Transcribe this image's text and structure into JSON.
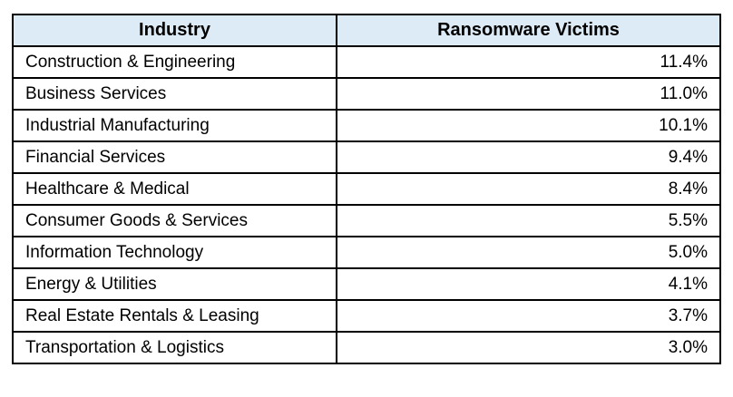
{
  "table": {
    "columns": [
      {
        "label": "Industry"
      },
      {
        "label": "Ransomware Victims"
      }
    ],
    "rows": [
      {
        "industry": "Construction & Engineering",
        "victims": "11.4%"
      },
      {
        "industry": "Business Services",
        "victims": "11.0%"
      },
      {
        "industry": "Industrial Manufacturing",
        "victims": "10.1%"
      },
      {
        "industry": "Financial Services",
        "victims": "9.4%"
      },
      {
        "industry": "Healthcare & Medical",
        "victims": "8.4%"
      },
      {
        "industry": "Consumer Goods & Services",
        "victims": "5.5%"
      },
      {
        "industry": "Information Technology",
        "victims": "5.0%"
      },
      {
        "industry": "Energy & Utilities",
        "victims": "4.1%"
      },
      {
        "industry": "Real Estate Rentals & Leasing",
        "victims": "3.7%"
      },
      {
        "industry": "Transportation & Logistics",
        "victims": "3.0%"
      }
    ],
    "colors": {
      "header_bg": "#DDEBF7",
      "border": "#000000",
      "text": "#000000",
      "page_bg": "#FFFFFF"
    }
  },
  "chart_data": {
    "type": "table",
    "title": "",
    "columns": [
      "Industry",
      "Ransomware Victims"
    ],
    "categories": [
      "Construction & Engineering",
      "Business Services",
      "Industrial Manufacturing",
      "Financial Services",
      "Healthcare & Medical",
      "Consumer Goods & Services",
      "Information Technology",
      "Energy & Utilities",
      "Real Estate Rentals & Leasing",
      "Transportation & Logistics"
    ],
    "values": [
      11.4,
      11.0,
      10.1,
      9.4,
      8.4,
      5.5,
      5.0,
      4.1,
      3.7,
      3.0
    ],
    "value_unit": "%"
  }
}
